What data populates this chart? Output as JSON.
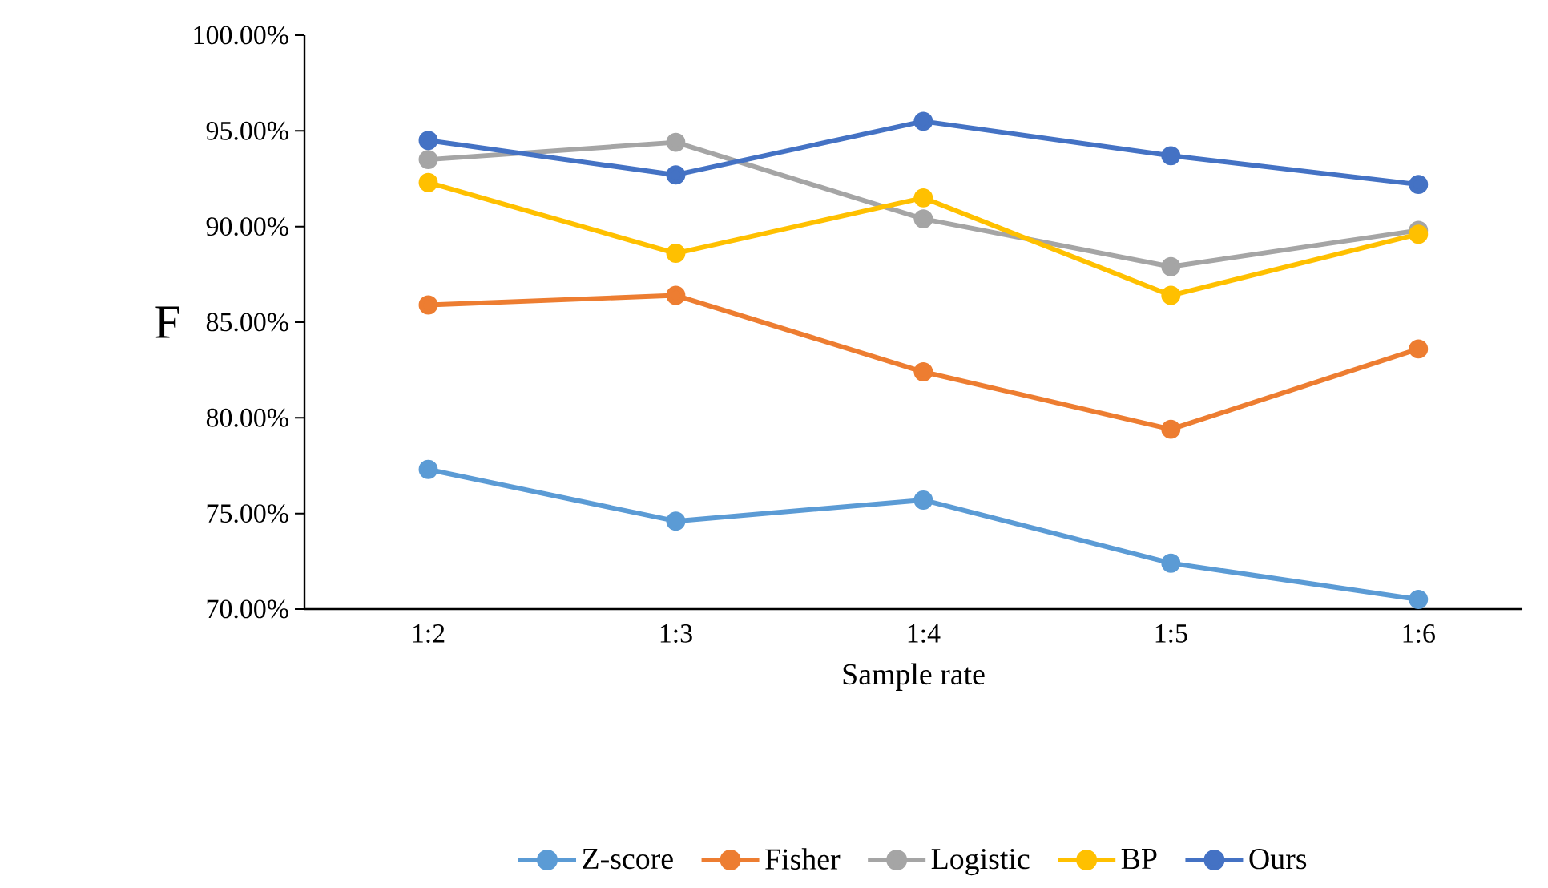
{
  "chart_data": {
    "type": "line",
    "xlabel": "Sample rate",
    "ylabel": "F",
    "categories": [
      "1:2",
      "1:3",
      "1:4",
      "1:5",
      "1:6"
    ],
    "ylim": [
      70,
      100
    ],
    "yticks": [
      {
        "value": 70,
        "label": "70.00%"
      },
      {
        "value": 75,
        "label": "75.00%"
      },
      {
        "value": 80,
        "label": "80.00%"
      },
      {
        "value": 85,
        "label": "85.00%"
      },
      {
        "value": 90,
        "label": "90.00%"
      },
      {
        "value": 95,
        "label": "95.00%"
      },
      {
        "value": 100,
        "label": "100.00%"
      }
    ],
    "series": [
      {
        "name": "Z-score",
        "color": "#5b9bd5",
        "values": [
          77.3,
          74.6,
          75.7,
          72.4,
          70.5
        ]
      },
      {
        "name": "Fisher",
        "color": "#ed7d31",
        "values": [
          85.9,
          86.4,
          82.4,
          79.4,
          83.6
        ]
      },
      {
        "name": "Logistic",
        "color": "#a5a5a5",
        "values": [
          93.5,
          94.4,
          90.4,
          87.9,
          89.8
        ]
      },
      {
        "name": "BP",
        "color": "#ffc000",
        "values": [
          92.3,
          88.6,
          91.5,
          86.4,
          89.6
        ]
      },
      {
        "name": "Ours",
        "color": "#4472c4",
        "values": [
          94.5,
          92.7,
          95.5,
          93.7,
          92.2
        ]
      }
    ],
    "legend": "bottom",
    "marker": "circle",
    "grid": false
  }
}
